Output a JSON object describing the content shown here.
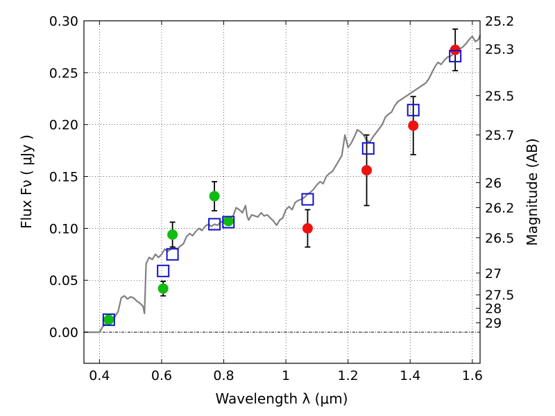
{
  "chart_data": {
    "type": "scatter",
    "xlabel": "Wavelength  λ (μm)",
    "ylabel": "Flux  Fν  ( μJy )",
    "y2label": "Magnitude (AB)",
    "xlim": [
      0.35,
      1.625
    ],
    "ylim": [
      -0.03,
      0.3
    ],
    "x_ticks": [
      0.4,
      0.6,
      0.8,
      1.0,
      1.2,
      1.4,
      1.6
    ],
    "x_tick_labels": [
      "0.4",
      "0.6",
      "0.8",
      "1",
      "1.2",
      "1.4",
      "1.6"
    ],
    "y_ticks": [
      0.0,
      0.05,
      0.1,
      0.15,
      0.2,
      0.25,
      0.3
    ],
    "y_tick_labels": [
      "0.00",
      "0.05",
      "0.10",
      "0.15",
      "0.20",
      "0.25",
      "0.30"
    ],
    "grid": true,
    "horizontal_reference_line": 0.0,
    "magnitude_ticks": [
      {
        "label": "25.2",
        "flux": 0.3
      },
      {
        "label": "25.3",
        "flux": 0.273
      },
      {
        "label": "25.5",
        "flux": 0.228
      },
      {
        "label": "25.7",
        "flux": 0.19
      },
      {
        "label": "26",
        "flux": 0.144
      },
      {
        "label": "26.2",
        "flux": 0.12
      },
      {
        "label": "26.5",
        "flux": 0.091
      },
      {
        "label": "27",
        "flux": 0.057
      },
      {
        "label": "27.5",
        "flux": 0.036
      },
      {
        "label": "28",
        "flux": 0.023
      },
      {
        "label": "29",
        "flux": 0.009
      }
    ],
    "model_spectrum": {
      "color": "#808080",
      "points": [
        [
          0.35,
          0.0
        ],
        [
          0.4,
          0.0
        ],
        [
          0.41,
          0.005
        ],
        [
          0.43,
          0.012
        ],
        [
          0.45,
          0.015
        ],
        [
          0.46,
          0.02
        ],
        [
          0.47,
          0.033
        ],
        [
          0.48,
          0.035
        ],
        [
          0.49,
          0.032
        ],
        [
          0.5,
          0.034
        ],
        [
          0.51,
          0.033
        ],
        [
          0.52,
          0.03
        ],
        [
          0.53,
          0.028
        ],
        [
          0.54,
          0.025
        ],
        [
          0.545,
          0.018
        ],
        [
          0.55,
          0.066
        ],
        [
          0.56,
          0.072
        ],
        [
          0.57,
          0.07
        ],
        [
          0.58,
          0.075
        ],
        [
          0.59,
          0.072
        ],
        [
          0.6,
          0.075
        ],
        [
          0.61,
          0.08
        ],
        [
          0.62,
          0.078
        ],
        [
          0.63,
          0.08
        ],
        [
          0.64,
          0.082
        ],
        [
          0.65,
          0.08
        ],
        [
          0.66,
          0.083
        ],
        [
          0.67,
          0.085
        ],
        [
          0.68,
          0.092
        ],
        [
          0.69,
          0.095
        ],
        [
          0.7,
          0.093
        ],
        [
          0.71,
          0.097
        ],
        [
          0.72,
          0.1
        ],
        [
          0.73,
          0.098
        ],
        [
          0.74,
          0.102
        ],
        [
          0.75,
          0.104
        ],
        [
          0.76,
          0.102
        ],
        [
          0.77,
          0.104
        ],
        [
          0.78,
          0.103
        ],
        [
          0.79,
          0.106
        ],
        [
          0.8,
          0.107
        ],
        [
          0.81,
          0.109
        ],
        [
          0.82,
          0.11
        ],
        [
          0.83,
          0.112
        ],
        [
          0.84,
          0.12
        ],
        [
          0.85,
          0.118
        ],
        [
          0.86,
          0.115
        ],
        [
          0.87,
          0.122
        ],
        [
          0.875,
          0.112
        ],
        [
          0.88,
          0.108
        ],
        [
          0.89,
          0.113
        ],
        [
          0.9,
          0.112
        ],
        [
          0.91,
          0.111
        ],
        [
          0.92,
          0.115
        ],
        [
          0.93,
          0.112
        ],
        [
          0.94,
          0.113
        ],
        [
          0.95,
          0.11
        ],
        [
          0.96,
          0.107
        ],
        [
          0.97,
          0.103
        ],
        [
          0.98,
          0.108
        ],
        [
          0.99,
          0.11
        ],
        [
          1.0,
          0.118
        ],
        [
          1.01,
          0.121
        ],
        [
          1.02,
          0.118
        ],
        [
          1.03,
          0.125
        ],
        [
          1.04,
          0.127
        ],
        [
          1.05,
          0.128
        ],
        [
          1.06,
          0.13
        ],
        [
          1.07,
          0.133
        ],
        [
          1.08,
          0.135
        ],
        [
          1.09,
          0.138
        ],
        [
          1.1,
          0.142
        ],
        [
          1.11,
          0.145
        ],
        [
          1.12,
          0.143
        ],
        [
          1.13,
          0.15
        ],
        [
          1.14,
          0.153
        ],
        [
          1.15,
          0.155
        ],
        [
          1.16,
          0.16
        ],
        [
          1.17,
          0.165
        ],
        [
          1.18,
          0.17
        ],
        [
          1.19,
          0.19
        ],
        [
          1.2,
          0.178
        ],
        [
          1.21,
          0.182
        ],
        [
          1.22,
          0.188
        ],
        [
          1.23,
          0.195
        ],
        [
          1.24,
          0.193
        ],
        [
          1.25,
          0.19
        ],
        [
          1.26,
          0.185
        ],
        [
          1.27,
          0.183
        ],
        [
          1.28,
          0.188
        ],
        [
          1.29,
          0.192
        ],
        [
          1.3,
          0.196
        ],
        [
          1.31,
          0.2
        ],
        [
          1.32,
          0.207
        ],
        [
          1.33,
          0.21
        ],
        [
          1.34,
          0.212
        ],
        [
          1.35,
          0.218
        ],
        [
          1.36,
          0.222
        ],
        [
          1.37,
          0.224
        ],
        [
          1.38,
          0.226
        ],
        [
          1.39,
          0.228
        ],
        [
          1.4,
          0.23
        ],
        [
          1.41,
          0.232
        ],
        [
          1.42,
          0.234
        ],
        [
          1.43,
          0.236
        ],
        [
          1.44,
          0.238
        ],
        [
          1.45,
          0.24
        ],
        [
          1.46,
          0.244
        ],
        [
          1.47,
          0.25
        ],
        [
          1.48,
          0.256
        ],
        [
          1.49,
          0.26
        ],
        [
          1.5,
          0.258
        ],
        [
          1.51,
          0.262
        ],
        [
          1.52,
          0.265
        ],
        [
          1.53,
          0.266
        ],
        [
          1.54,
          0.268
        ],
        [
          1.55,
          0.27
        ],
        [
          1.56,
          0.273
        ],
        [
          1.57,
          0.275
        ],
        [
          1.58,
          0.278
        ],
        [
          1.59,
          0.282
        ],
        [
          1.6,
          0.285
        ],
        [
          1.61,
          0.28
        ],
        [
          1.62,
          0.282
        ],
        [
          1.625,
          0.286
        ]
      ]
    },
    "model_fluxes": {
      "marker": "open-square",
      "color": "#1111cc",
      "points": [
        [
          0.43,
          0.012
        ],
        [
          0.605,
          0.059
        ],
        [
          0.635,
          0.075
        ],
        [
          0.77,
          0.104
        ],
        [
          0.815,
          0.106
        ],
        [
          1.07,
          0.128
        ],
        [
          1.265,
          0.177
        ],
        [
          1.41,
          0.214
        ],
        [
          1.545,
          0.266
        ]
      ]
    },
    "observed_optical": {
      "marker": "filled-circle",
      "color": "#11bb11",
      "points": [
        {
          "x": 0.43,
          "y": 0.012,
          "err": 0.0
        },
        {
          "x": 0.605,
          "y": 0.042,
          "err": 0.007
        },
        {
          "x": 0.635,
          "y": 0.094,
          "err": 0.012
        },
        {
          "x": 0.77,
          "y": 0.131,
          "err": 0.014
        },
        {
          "x": 0.815,
          "y": 0.107,
          "err": 0.0
        }
      ]
    },
    "observed_nir": {
      "marker": "filled-circle",
      "color": "#ee1111",
      "points": [
        {
          "x": 1.07,
          "y": 0.1,
          "err": 0.018
        },
        {
          "x": 1.26,
          "y": 0.156,
          "err": 0.034
        },
        {
          "x": 1.41,
          "y": 0.199,
          "err": 0.028
        },
        {
          "x": 1.545,
          "y": 0.272,
          "err": 0.02
        }
      ]
    }
  }
}
